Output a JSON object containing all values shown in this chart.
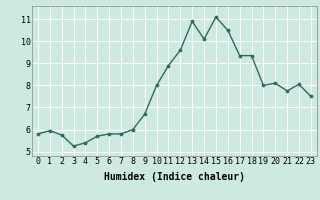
{
  "x": [
    0,
    1,
    2,
    3,
    4,
    5,
    6,
    7,
    8,
    9,
    10,
    11,
    12,
    13,
    14,
    15,
    16,
    17,
    18,
    19,
    20,
    21,
    22,
    23
  ],
  "y": [
    5.8,
    5.95,
    5.75,
    5.25,
    5.4,
    5.7,
    5.8,
    5.8,
    6.0,
    6.7,
    8.0,
    8.9,
    9.6,
    10.9,
    10.1,
    11.1,
    10.5,
    9.35,
    9.35,
    8.0,
    8.1,
    7.75,
    8.05,
    7.5
  ],
  "line_color": "#2e6b5e",
  "marker": "o",
  "marker_size": 2.2,
  "linewidth": 1.0,
  "bg_color": "#cceae0",
  "grid_color": "#ffffff",
  "xlabel": "Humidex (Indice chaleur)",
  "xlabel_fontsize": 7,
  "tick_fontsize": 6,
  "ylim": [
    4.8,
    11.6
  ],
  "xlim": [
    -0.5,
    23.5
  ],
  "yticks": [
    5,
    6,
    7,
    8,
    9,
    10,
    11
  ],
  "xticks": [
    0,
    1,
    2,
    3,
    4,
    5,
    6,
    7,
    8,
    9,
    10,
    11,
    12,
    13,
    14,
    15,
    16,
    17,
    18,
    19,
    20,
    21,
    22,
    23
  ]
}
